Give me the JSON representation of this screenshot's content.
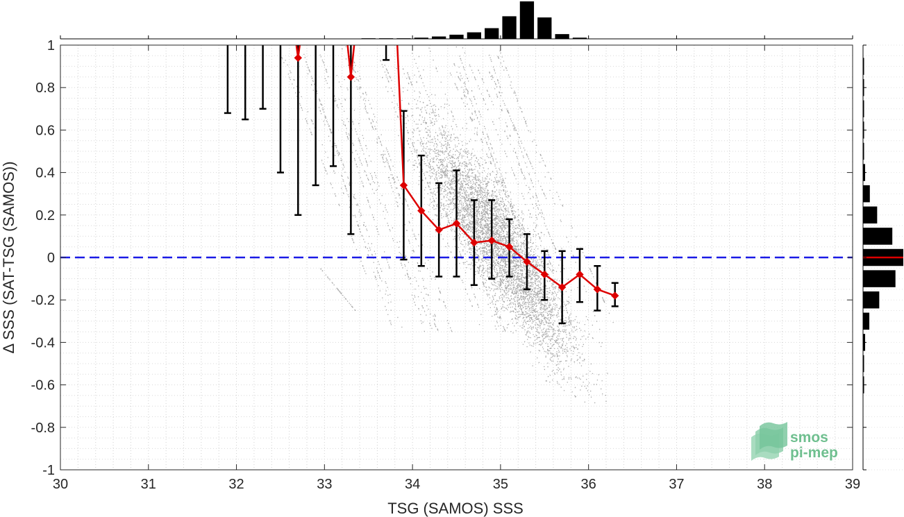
{
  "chart_data": {
    "type": "scatter",
    "title": "",
    "xlabel": "TSG (SAMOS) SSS",
    "ylabel": "Δ SSS (SAT-TSG (SAMOS))",
    "xlim": [
      30,
      39
    ],
    "ylim": [
      -1,
      1
    ],
    "x_ticks": [
      "30",
      "31",
      "32",
      "33",
      "34",
      "35",
      "36",
      "37",
      "38",
      "39"
    ],
    "y_ticks": [
      "-1",
      "-0.8",
      "-0.6",
      "-0.4",
      "-0.2",
      "0",
      "0.2",
      "0.4",
      "0.6",
      "0.8",
      "1"
    ],
    "grid": "minor-dotted",
    "legend": "none",
    "reference_line": {
      "y": 0,
      "style": "dashed",
      "color": "#1a1ae6"
    },
    "scatter_cloud": {
      "color": "#8a8a8a",
      "description_region": {
        "x_range": [
          32.3,
          36.4
        ],
        "y_range": [
          -0.7,
          1.0
        ]
      },
      "main_center": {
        "x": 35.0,
        "y": 0.05
      },
      "slope": -0.55
    },
    "binned_median": {
      "color": "#dd0000",
      "x": [
        32.7,
        33.3,
        33.9,
        34.1,
        34.3,
        34.5,
        34.7,
        34.9,
        35.1,
        35.3,
        35.5,
        35.7,
        35.9,
        36.1,
        36.3
      ],
      "y": [
        0.94,
        0.85,
        0.34,
        0.22,
        0.13,
        0.16,
        0.07,
        0.08,
        0.05,
        -0.02,
        -0.08,
        -0.14,
        -0.08,
        -0.15,
        -0.18
      ]
    },
    "error_bars": [
      {
        "x": 31.9,
        "low": 0.68,
        "high": 1.0
      },
      {
        "x": 32.1,
        "low": 0.65,
        "high": 1.0
      },
      {
        "x": 32.3,
        "low": 0.7,
        "high": 1.0
      },
      {
        "x": 32.5,
        "low": 0.4,
        "high": 1.0
      },
      {
        "x": 32.7,
        "low": 0.2,
        "high": 1.0
      },
      {
        "x": 32.9,
        "low": 0.34,
        "high": 1.0
      },
      {
        "x": 33.1,
        "low": 0.43,
        "high": 1.0
      },
      {
        "x": 33.3,
        "low": 0.11,
        "high": 1.0
      },
      {
        "x": 33.7,
        "low": 0.93,
        "high": 1.0
      },
      {
        "x": 33.9,
        "low": -0.01,
        "high": 0.69
      },
      {
        "x": 34.1,
        "low": -0.04,
        "high": 0.48
      },
      {
        "x": 34.3,
        "low": -0.09,
        "high": 0.35
      },
      {
        "x": 34.5,
        "low": -0.09,
        "high": 0.41
      },
      {
        "x": 34.7,
        "low": -0.13,
        "high": 0.27
      },
      {
        "x": 34.9,
        "low": -0.1,
        "high": 0.27
      },
      {
        "x": 35.1,
        "low": -0.09,
        "high": 0.18
      },
      {
        "x": 35.3,
        "low": -0.15,
        "high": 0.11
      },
      {
        "x": 35.5,
        "low": -0.2,
        "high": 0.03
      },
      {
        "x": 35.7,
        "low": -0.31,
        "high": 0.03
      },
      {
        "x": 35.9,
        "low": -0.21,
        "high": 0.04
      },
      {
        "x": 36.1,
        "low": -0.25,
        "high": -0.04
      },
      {
        "x": 36.3,
        "low": -0.23,
        "high": -0.12
      }
    ],
    "top_histogram": {
      "bins_x": [
        33.5,
        33.7,
        33.9,
        34.1,
        34.3,
        34.5,
        34.7,
        34.9,
        35.1,
        35.3,
        35.5,
        35.7,
        35.9
      ],
      "counts": [
        0.01,
        0.01,
        0.01,
        0.02,
        0.04,
        0.07,
        0.11,
        0.18,
        0.38,
        0.63,
        0.36,
        0.08,
        0.02
      ]
    },
    "right_histogram": {
      "bins_y": [
        0.9,
        0.8,
        0.7,
        0.6,
        0.5,
        0.4,
        0.3,
        0.2,
        0.1,
        0.0,
        -0.1,
        -0.2,
        -0.3,
        -0.4,
        -0.5,
        -0.6
      ],
      "counts": [
        0.01,
        0.01,
        0.01,
        0.01,
        0.01,
        0.04,
        0.13,
        0.27,
        0.56,
        0.77,
        0.62,
        0.31,
        0.12,
        0.04,
        0.01,
        0.01
      ],
      "median_line_color": "#dd0000"
    }
  },
  "logo": {
    "line1": "smos",
    "line2": "pi-mep",
    "color": "#6fbf8f"
  }
}
